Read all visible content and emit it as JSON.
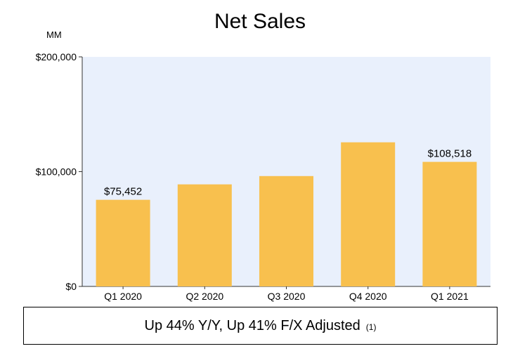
{
  "chart_data": {
    "type": "bar",
    "title": "Net Sales",
    "unit_label": "MM",
    "categories": [
      "Q1 2020",
      "Q2 2020",
      "Q3 2020",
      "Q4 2020",
      "Q1 2021"
    ],
    "values": [
      75452,
      88912,
      96145,
      125555,
      108518
    ],
    "data_labels": [
      "$75,452",
      "",
      "",
      "",
      "$108,518"
    ],
    "ylim": [
      0,
      200000
    ],
    "yticks": [
      0,
      100000,
      200000
    ],
    "ytick_labels": [
      "$0",
      "$100,000",
      "$200,000"
    ],
    "xlabel": "",
    "ylabel": "",
    "grid": false,
    "colors": {
      "bar": "#F8C04E",
      "plot_bg": "#E9F0FC"
    }
  },
  "footer": {
    "text": "Up 44% Y/Y, Up 41% F/X Adjusted",
    "note": "(1)"
  }
}
